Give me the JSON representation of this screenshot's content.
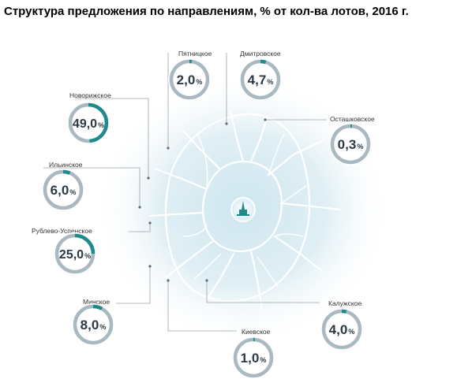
{
  "title": "Структура предложения по направлениям, % от кол-ва лотов, 2016 г.",
  "colors": {
    "ring": "#a9b9c1",
    "accent": "#1f8a8a",
    "text": "#2b3a44",
    "road": "#ffffff",
    "halo": "#cfe6ef"
  },
  "chart_data": {
    "type": "donut",
    "title": "Структура предложения по направлениям, % от кол-ва лотов, 2016 г.",
    "unit": "%",
    "series": [
      {
        "name": "Пятницкое",
        "value": 2.0,
        "display": "2,0",
        "pct": "%"
      },
      {
        "name": "Дмитровское",
        "value": 4.7,
        "display": "4,7",
        "pct": "%"
      },
      {
        "name": "Новорижское",
        "value": 49.0,
        "display": "49,0",
        "pct": "%"
      },
      {
        "name": "Осташковское",
        "value": 0.3,
        "display": "0,3",
        "pct": "%"
      },
      {
        "name": "Ильинское",
        "value": 6.0,
        "display": "6,0",
        "pct": "%"
      },
      {
        "name": "Рублево-Успенское",
        "value": 25.0,
        "display": "25,0",
        "pct": "%"
      },
      {
        "name": "Минское",
        "value": 8.0,
        "display": "8,0",
        "pct": "%"
      },
      {
        "name": "Калужское",
        "value": 4.0,
        "display": "4,0",
        "pct": "%"
      },
      {
        "name": "Киевское",
        "value": 1.0,
        "display": "1,0",
        "pct": "%"
      }
    ]
  }
}
